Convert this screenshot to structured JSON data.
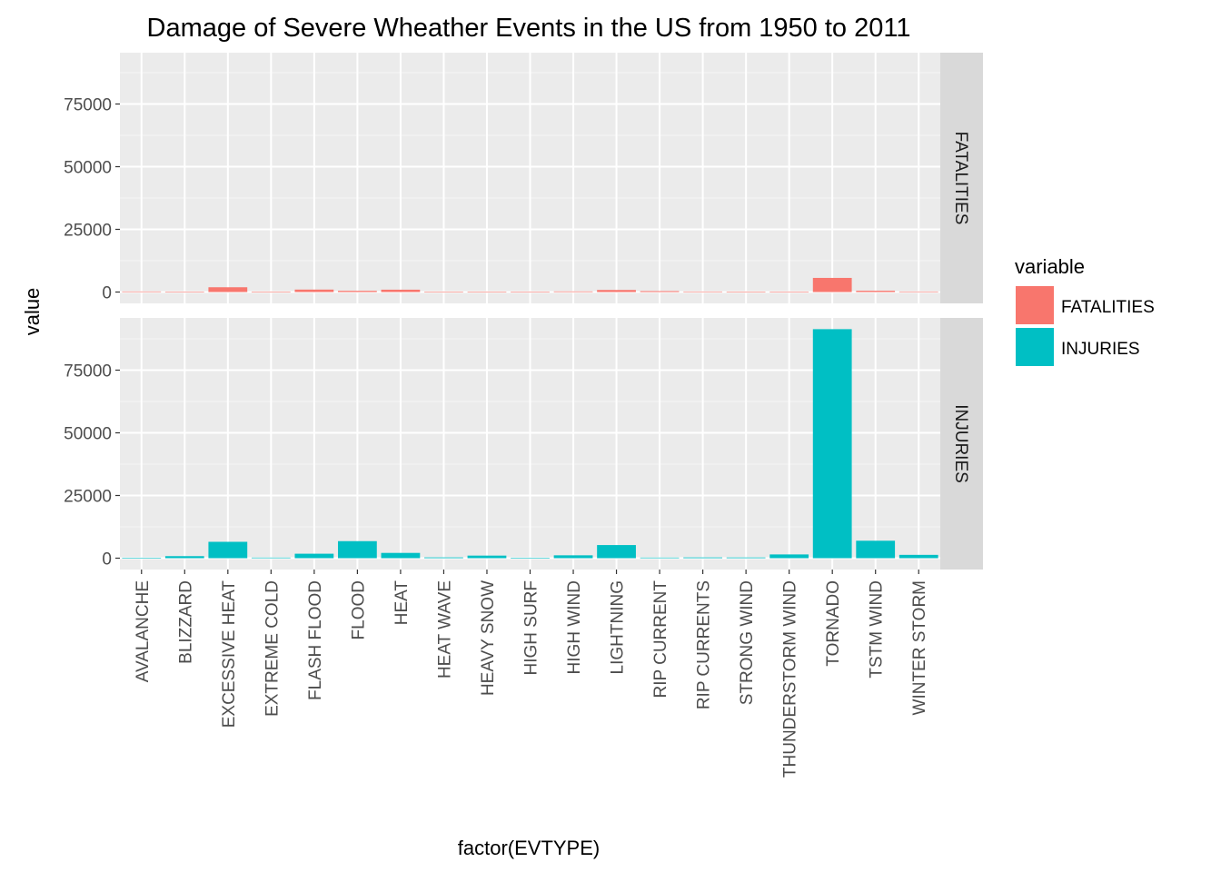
{
  "chart_data": {
    "type": "bar",
    "title": "Damage of Severe Wheather Events in the US from 1950 to 2011",
    "xlabel": "factor(EVTYPE)",
    "ylabel": "value",
    "ylim": [
      0,
      95000
    ],
    "yticks": [
      0,
      25000,
      50000,
      75000
    ],
    "grid": true,
    "legend_position": "right",
    "legend_title": "variable",
    "categories": [
      "AVALANCHE",
      "BLIZZARD",
      "EXCESSIVE HEAT",
      "EXTREME COLD",
      "FLASH FLOOD",
      "FLOOD",
      "HEAT",
      "HEAT WAVE",
      "HEAVY SNOW",
      "HIGH SURF",
      "HIGH WIND",
      "LIGHTNING",
      "RIP CURRENT",
      "RIP CURRENTS",
      "STRONG WIND",
      "THUNDERSTORM WIND",
      "TORNADO",
      "TSTM WIND",
      "WINTER STORM"
    ],
    "facets": [
      {
        "name": "FATALITIES",
        "color": "#F8766D",
        "values": [
          224,
          101,
          1903,
          160,
          978,
          470,
          937,
          172,
          127,
          101,
          248,
          816,
          368,
          204,
          103,
          133,
          5633,
          504,
          206
        ]
      },
      {
        "name": "INJURIES",
        "color": "#00BFC4",
        "values": [
          170,
          805,
          6525,
          231,
          1777,
          6789,
          2100,
          309,
          1021,
          156,
          1137,
          5230,
          232,
          297,
          280,
          1488,
          91346,
          6957,
          1321
        ]
      }
    ]
  }
}
